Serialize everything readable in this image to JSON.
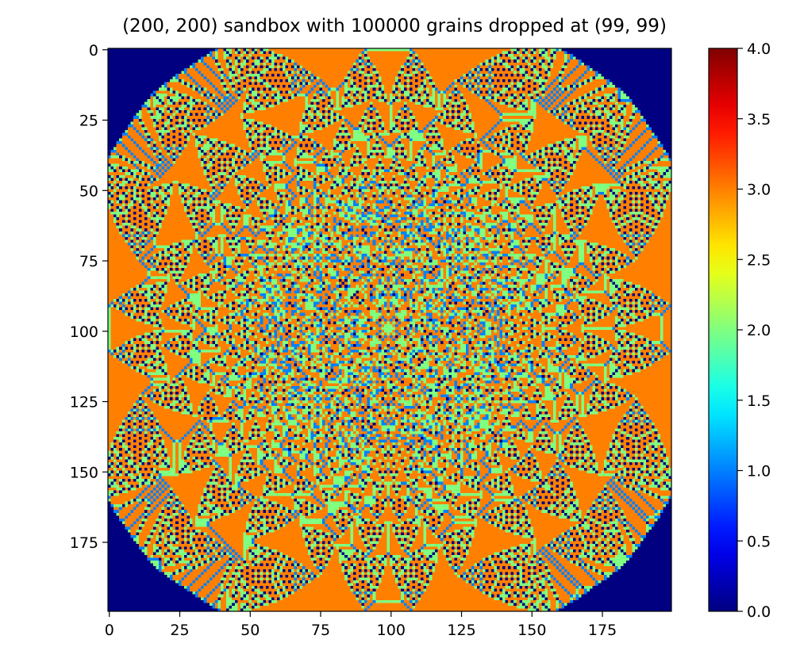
{
  "chart_data": {
    "type": "heatmap",
    "title": "(200, 200) sandbox with 100000 grains dropped at (99, 99)",
    "grid_shape": [
      200,
      200
    ],
    "grains": 100000,
    "drop_site": [
      99,
      99
    ],
    "xlabel": "",
    "ylabel": "",
    "xlim": [
      -0.5,
      199.5
    ],
    "ylim": [
      199.5,
      -0.5
    ],
    "x_ticks": [
      0,
      25,
      50,
      75,
      100,
      125,
      150,
      175
    ],
    "y_ticks": [
      0,
      25,
      50,
      75,
      100,
      125,
      150,
      175
    ],
    "colorbar": {
      "colormap": "jet",
      "vmin": 0.0,
      "vmax": 4.0,
      "ticks": [
        "0.0",
        "0.5",
        "1.0",
        "1.5",
        "2.0",
        "2.5",
        "3.0",
        "3.5",
        "4.0"
      ]
    },
    "grid": false,
    "legend": "none",
    "colors": {
      "empty": "#00007f",
      "one": "#0080ff",
      "two": "#7dff7a",
      "three": "#ff9400"
    }
  }
}
